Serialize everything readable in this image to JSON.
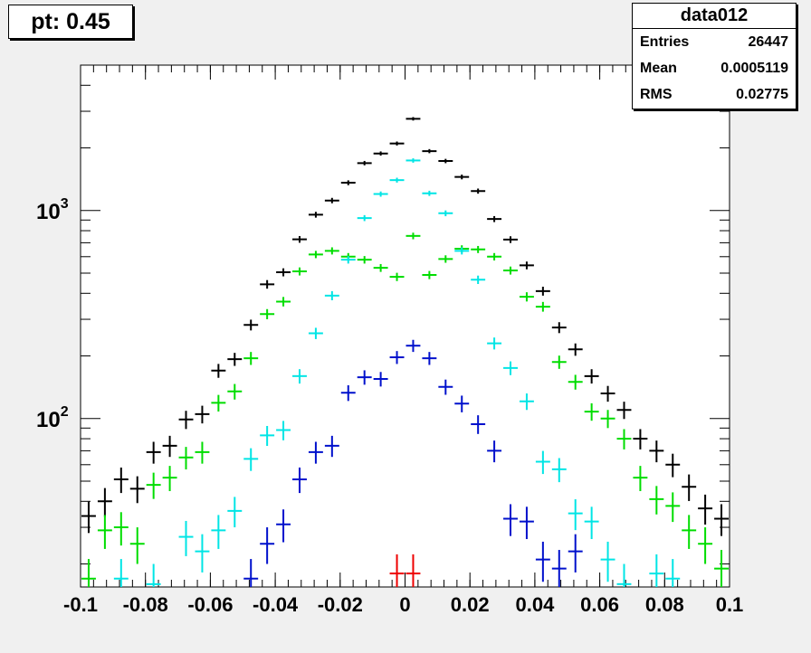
{
  "pad_title": "pt: 0.45",
  "stats": {
    "name": "data012",
    "rows": [
      {
        "label": "Entries",
        "value": "26447"
      },
      {
        "label": "Mean",
        "value": "0.0005119"
      },
      {
        "label": "RMS",
        "value": "0.02775"
      }
    ]
  },
  "chart_data": {
    "type": "scatter",
    "title": "",
    "xlabel": "",
    "ylabel": "",
    "xlim": [
      -0.1,
      0.1
    ],
    "ylim": [
      15.5,
      5000
    ],
    "ylog": true,
    "x_ticks": [
      -0.1,
      -0.08,
      -0.06,
      -0.04,
      -0.02,
      0,
      0.02,
      0.04,
      0.06,
      0.08,
      0.1
    ],
    "x_tick_labels": [
      "-0.1",
      "-0.08",
      "-0.06",
      "-0.04",
      "-0.02",
      "0",
      "0.02",
      "0.04",
      "0.06",
      "0.08",
      "0.1"
    ],
    "y_ticks": [
      100,
      1000
    ],
    "y_tick_labels": [
      {
        "base": "10",
        "exp": "2"
      },
      {
        "base": "10",
        "exp": "3"
      }
    ],
    "bin_width": 0.005,
    "series": [
      {
        "color": "#000000",
        "points": [
          [
            -0.0975,
            34
          ],
          [
            -0.0925,
            40
          ],
          [
            -0.0875,
            51
          ],
          [
            -0.0825,
            46
          ],
          [
            -0.0775,
            69
          ],
          [
            -0.0725,
            74
          ],
          [
            -0.0675,
            99
          ],
          [
            -0.0625,
            105
          ],
          [
            -0.0575,
            170
          ],
          [
            -0.0525,
            193
          ],
          [
            -0.0475,
            282
          ],
          [
            -0.0425,
            442
          ],
          [
            -0.0375,
            505
          ],
          [
            -0.0325,
            727
          ],
          [
            -0.0275,
            955
          ],
          [
            -0.0225,
            1117
          ],
          [
            -0.0175,
            1360
          ],
          [
            -0.0125,
            1690
          ],
          [
            -0.0075,
            1880
          ],
          [
            -0.0025,
            2100
          ],
          [
            0.0025,
            2760
          ],
          [
            0.0075,
            1930
          ],
          [
            0.0125,
            1730
          ],
          [
            0.0175,
            1450
          ],
          [
            0.0225,
            1240
          ],
          [
            0.0275,
            910
          ],
          [
            0.0325,
            725
          ],
          [
            0.0375,
            545
          ],
          [
            0.0425,
            410
          ],
          [
            0.0475,
            274
          ],
          [
            0.0525,
            215
          ],
          [
            0.0575,
            160
          ],
          [
            0.0625,
            132
          ],
          [
            0.0675,
            110
          ],
          [
            0.0725,
            80
          ],
          [
            0.0775,
            70
          ],
          [
            0.0825,
            60
          ],
          [
            0.0875,
            47
          ],
          [
            0.0925,
            37
          ],
          [
            0.0975,
            33
          ]
        ]
      },
      {
        "color": "#00dd00",
        "points": [
          [
            -0.0975,
            17
          ],
          [
            -0.0925,
            29
          ],
          [
            -0.0875,
            30
          ],
          [
            -0.0825,
            25
          ],
          [
            -0.0775,
            48
          ],
          [
            -0.0725,
            52
          ],
          [
            -0.0675,
            65
          ],
          [
            -0.0625,
            69
          ],
          [
            -0.0575,
            119
          ],
          [
            -0.0525,
            135
          ],
          [
            -0.0475,
            195
          ],
          [
            -0.0425,
            318
          ],
          [
            -0.0375,
            365
          ],
          [
            -0.0325,
            510
          ],
          [
            -0.0275,
            615
          ],
          [
            -0.0225,
            640
          ],
          [
            -0.0175,
            600
          ],
          [
            -0.0125,
            580
          ],
          [
            -0.0075,
            530
          ],
          [
            -0.0025,
            480
          ],
          [
            0.0025,
            755
          ],
          [
            0.0075,
            490
          ],
          [
            0.0125,
            585
          ],
          [
            0.0175,
            655
          ],
          [
            0.0225,
            650
          ],
          [
            0.0275,
            600
          ],
          [
            0.0325,
            515
          ],
          [
            0.0375,
            385
          ],
          [
            0.0425,
            345
          ],
          [
            0.0475,
            187
          ],
          [
            0.0525,
            150
          ],
          [
            0.0575,
            108
          ],
          [
            0.0625,
            100
          ],
          [
            0.0675,
            80
          ],
          [
            0.0725,
            52
          ],
          [
            0.0775,
            41
          ],
          [
            0.0825,
            38
          ],
          [
            0.0875,
            29
          ],
          [
            0.0925,
            25
          ],
          [
            0.0975,
            19
          ]
        ]
      },
      {
        "color": "#00e5e5",
        "points": [
          [
            -0.0875,
            17
          ],
          [
            -0.0775,
            16
          ],
          [
            -0.0675,
            27
          ],
          [
            -0.0625,
            23
          ],
          [
            -0.0575,
            29
          ],
          [
            -0.0525,
            36
          ],
          [
            -0.0475,
            64
          ],
          [
            -0.0425,
            83
          ],
          [
            -0.0375,
            88
          ],
          [
            -0.0325,
            160
          ],
          [
            -0.0275,
            257
          ],
          [
            -0.0225,
            390
          ],
          [
            -0.0175,
            580
          ],
          [
            -0.0125,
            920
          ],
          [
            -0.0075,
            1200
          ],
          [
            -0.0025,
            1400
          ],
          [
            0.0025,
            1740
          ],
          [
            0.0075,
            1210
          ],
          [
            0.0125,
            970
          ],
          [
            0.0175,
            640
          ],
          [
            0.0225,
            465
          ],
          [
            0.0275,
            230
          ],
          [
            0.0325,
            175
          ],
          [
            0.0375,
            121
          ],
          [
            0.0425,
            62
          ],
          [
            0.0475,
            57
          ],
          [
            0.0525,
            35
          ],
          [
            0.0575,
            32
          ],
          [
            0.0625,
            21
          ],
          [
            0.0675,
            16
          ],
          [
            0.0775,
            18
          ],
          [
            0.0825,
            17
          ]
        ]
      },
      {
        "color": "#0010cc",
        "points": [
          [
            -0.0475,
            17
          ],
          [
            -0.0425,
            25
          ],
          [
            -0.0375,
            31
          ],
          [
            -0.0325,
            51
          ],
          [
            -0.0275,
            69
          ],
          [
            -0.0225,
            74
          ],
          [
            -0.0175,
            133
          ],
          [
            -0.0125,
            158
          ],
          [
            -0.0075,
            155
          ],
          [
            -0.0025,
            197
          ],
          [
            0.0025,
            224
          ],
          [
            0.0075,
            195
          ],
          [
            0.0125,
            142
          ],
          [
            0.0175,
            118
          ],
          [
            0.0225,
            94
          ],
          [
            0.0275,
            70
          ],
          [
            0.0325,
            33
          ],
          [
            0.0375,
            32
          ],
          [
            0.0425,
            21
          ],
          [
            0.0475,
            19
          ],
          [
            0.0525,
            23
          ]
        ]
      },
      {
        "color": "#ee0000",
        "points": [
          [
            -0.0025,
            18
          ],
          [
            0.0025,
            18
          ]
        ]
      }
    ]
  }
}
